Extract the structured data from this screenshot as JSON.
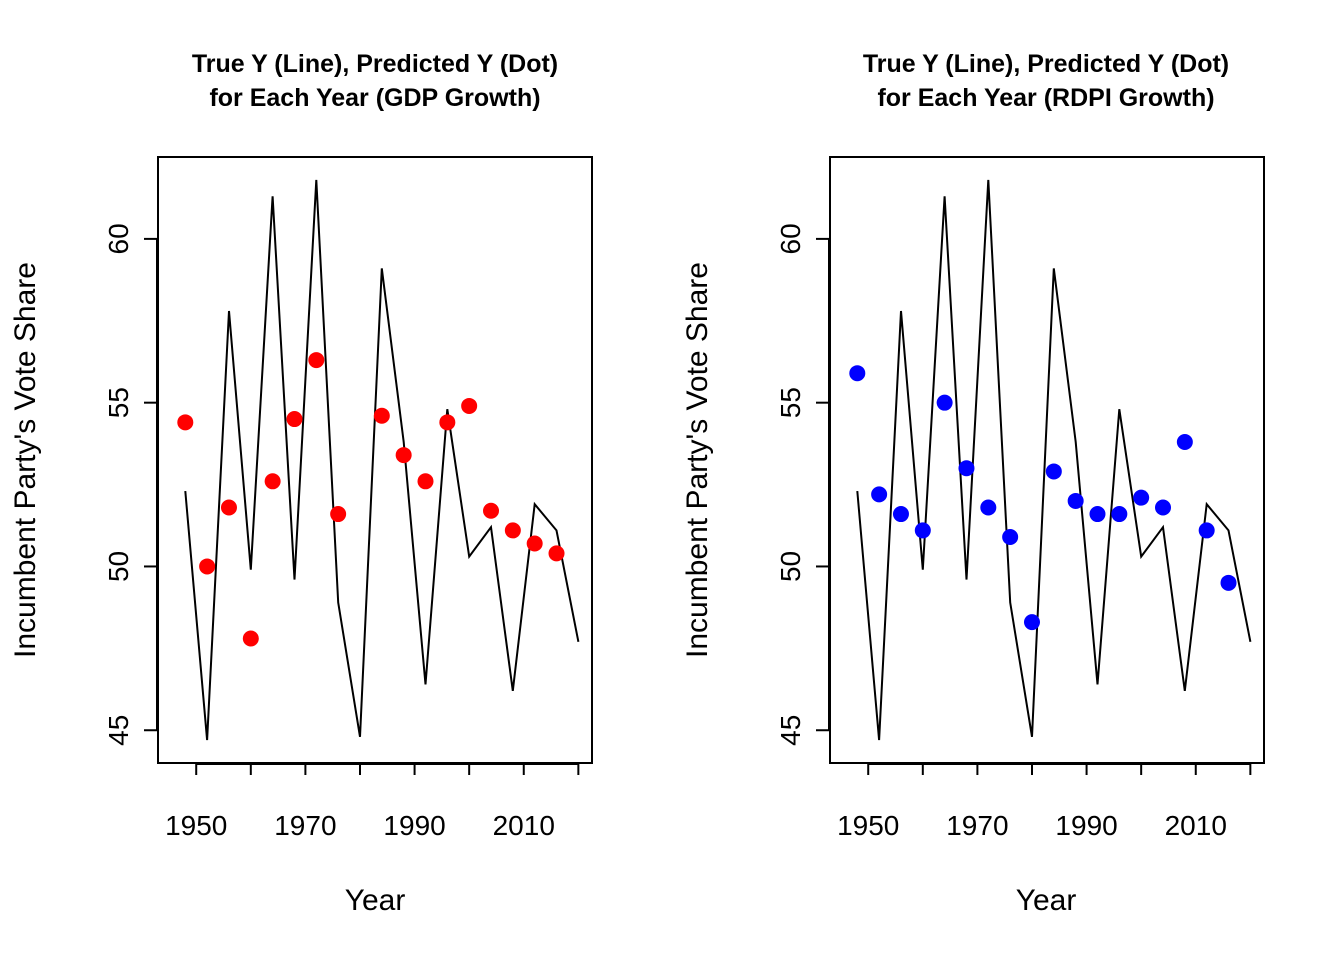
{
  "chart_data": [
    {
      "type": "line",
      "title_lines": [
        "True Y (Line), Predicted Y (Dot)",
        "for Each Year (GDP Growth)"
      ],
      "xlabel": "Year",
      "ylabel": "Incumbent Party's Vote Share",
      "xlim": [
        1943,
        2022.5
      ],
      "ylim": [
        44,
        62.5
      ],
      "xticks": [
        1950,
        1960,
        1970,
        1980,
        1990,
        2000,
        2010,
        2020
      ],
      "xtick_labels": [
        "1950",
        "",
        "1970",
        "",
        "1990",
        "",
        "2010",
        ""
      ],
      "yticks": [
        45,
        50,
        55,
        60
      ],
      "ytick_labels": [
        "45",
        "50",
        "55",
        "60"
      ],
      "x": [
        1948,
        1952,
        1956,
        1960,
        1964,
        1968,
        1972,
        1976,
        1980,
        1984,
        1988,
        1992,
        1996,
        2000,
        2004,
        2008,
        2012,
        2016,
        2020
      ],
      "series": [
        {
          "role": "line",
          "color": "#000000",
          "values": [
            52.3,
            44.7,
            57.8,
            49.9,
            61.3,
            49.6,
            61.8,
            48.9,
            44.8,
            59.1,
            53.8,
            46.4,
            54.8,
            50.3,
            51.2,
            46.2,
            51.9,
            51.1,
            47.7
          ]
        },
        {
          "role": "points",
          "color": "#ff0000",
          "x": [
            1948,
            1952,
            1956,
            1960,
            1964,
            1968,
            1972,
            1976,
            1984,
            1988,
            1992,
            1996,
            2000,
            2004,
            2008,
            2012,
            2016
          ],
          "values": [
            54.4,
            50.0,
            51.8,
            47.8,
            52.6,
            54.5,
            56.3,
            51.6,
            54.6,
            53.4,
            52.6,
            54.4,
            54.9,
            51.7,
            51.1,
            50.7,
            50.4
          ]
        }
      ]
    },
    {
      "type": "line",
      "title_lines": [
        "True Y (Line), Predicted Y (Dot)",
        "for Each Year (RDPI Growth)"
      ],
      "xlabel": "Year",
      "ylabel": "Incumbent Party's Vote Share",
      "xlim": [
        1943,
        2022.5
      ],
      "ylim": [
        44,
        62.5
      ],
      "xticks": [
        1950,
        1960,
        1970,
        1980,
        1990,
        2000,
        2010,
        2020
      ],
      "xtick_labels": [
        "1950",
        "",
        "1970",
        "",
        "1990",
        "",
        "2010",
        ""
      ],
      "yticks": [
        45,
        50,
        55,
        60
      ],
      "ytick_labels": [
        "45",
        "50",
        "55",
        "60"
      ],
      "x": [
        1948,
        1952,
        1956,
        1960,
        1964,
        1968,
        1972,
        1976,
        1980,
        1984,
        1988,
        1992,
        1996,
        2000,
        2004,
        2008,
        2012,
        2016,
        2020
      ],
      "series": [
        {
          "role": "line",
          "color": "#000000",
          "values": [
            52.3,
            44.7,
            57.8,
            49.9,
            61.3,
            49.6,
            61.8,
            48.9,
            44.8,
            59.1,
            53.8,
            46.4,
            54.8,
            50.3,
            51.2,
            46.2,
            51.9,
            51.1,
            47.7
          ]
        },
        {
          "role": "points",
          "color": "#0000ff",
          "x": [
            1948,
            1952,
            1956,
            1960,
            1964,
            1968,
            1972,
            1976,
            1980,
            1984,
            1988,
            1992,
            1996,
            2000,
            2004,
            2008,
            2012,
            2016
          ],
          "values": [
            55.9,
            52.2,
            51.6,
            51.1,
            55.0,
            53.0,
            51.8,
            50.9,
            48.3,
            52.9,
            52.0,
            51.6,
            51.6,
            52.1,
            51.8,
            53.8,
            51.1,
            49.5
          ]
        }
      ]
    }
  ]
}
